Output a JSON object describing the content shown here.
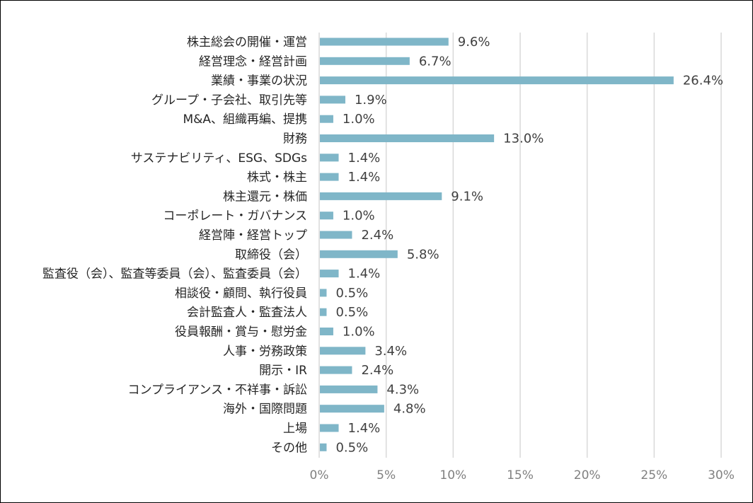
{
  "chart_data": {
    "type": "bar",
    "orientation": "horizontal",
    "title": "",
    "xlabel": "",
    "ylabel": "",
    "xlim": [
      0,
      30
    ],
    "grid": true,
    "legend": "none",
    "bar_color": "#7fb6c8",
    "ticks": [
      "0%",
      "5%",
      "10%",
      "15%",
      "20%",
      "25%",
      "30%"
    ],
    "categories": [
      "株主総会の開催・運営",
      "経営理念・経営計画",
      "業績・事業の状況",
      "グループ・子会社、取引先等",
      "M&A、組織再編、提携",
      "財務",
      "サステナビリティ、ESG、SDGs",
      "株式・株主",
      "株主還元・株価",
      "コーポレート・ガバナンス",
      "経営陣・経営トップ",
      "取締役（会）",
      "監査役（会）、監査等委員（会）、監査委員（会）",
      "相談役・顧問、執行役員",
      "会計監査人・監査法人",
      "役員報酬・賞与・慰労金",
      "人事・労務政策",
      "開示・IR",
      "コンプライアンス・不祥事・訴訟",
      "海外・国際問題",
      "上場",
      "その他"
    ],
    "values": [
      9.6,
      6.7,
      26.4,
      1.9,
      1.0,
      13.0,
      1.4,
      1.4,
      9.1,
      1.0,
      2.4,
      5.8,
      1.4,
      0.5,
      0.5,
      1.0,
      3.4,
      2.4,
      4.3,
      4.8,
      1.4,
      0.5
    ],
    "value_labels": [
      "9.6%",
      "6.7%",
      "26.4%",
      "1.9%",
      "1.0%",
      "13.0%",
      "1.4%",
      "1.4%",
      "9.1%",
      "1.0%",
      "2.4%",
      "5.8%",
      "1.4%",
      "0.5%",
      "0.5%",
      "1.0%",
      "3.4%",
      "2.4%",
      "4.3%",
      "4.8%",
      "1.4%",
      "0.5%"
    ]
  }
}
